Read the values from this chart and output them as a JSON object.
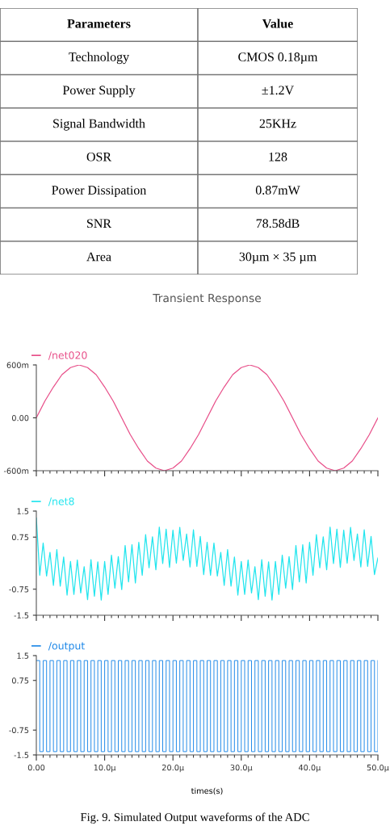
{
  "chart_data": [
    {
      "type": "other",
      "annotations": [
        "Parameters",
        "Value",
        "Technology",
        "CMOS 0.18µm",
        "Power Supply",
        "±1.2V",
        "Signal Bandwidth",
        "25KHz",
        "OSR",
        "128",
        "Power Dissipation",
        "0.87mW",
        "SNR",
        "78.58dB",
        "Area",
        "30µm × 35 µm"
      ]
    },
    {
      "type": "line",
      "title": "Transient Response",
      "legend": "top left",
      "tick_labels": "y",
      "xlim": [
        0,
        50
      ],
      "xticks": [
        {
          "value": 0,
          "label": null
        },
        {
          "value": 10,
          "label": null
        },
        {
          "value": 20,
          "label": null
        },
        {
          "value": 30,
          "label": null
        },
        {
          "value": 40,
          "label": null
        },
        {
          "value": 50,
          "label": null
        }
      ],
      "ylim": [
        -600,
        600
      ],
      "yticks": [
        {
          "value": 600,
          "label": "600m"
        },
        {
          "value": 0,
          "label": "0.00"
        },
        {
          "value": -600,
          "label": "-600m"
        }
      ],
      "x": [
        0,
        1.25,
        2.5,
        3.75,
        5,
        6.25,
        7.5,
        8.75,
        10,
        11.25,
        12.5,
        13.75,
        15,
        16.25,
        17.5,
        18.75,
        20,
        21.25,
        22.5,
        23.75,
        25,
        26.25,
        27.5,
        28.75,
        30,
        31.25,
        32.5,
        33.75,
        35,
        36.25,
        37.5,
        38.75,
        40,
        41.25,
        42.5,
        43.75,
        45,
        46.25,
        47.5,
        48.75,
        50
      ],
      "series": [
        {
          "name": "/net020",
          "color": "#e8508a",
          "values": [
            0,
            190,
            350,
            490,
            570,
            600,
            570,
            490,
            350,
            190,
            0,
            -190,
            -350,
            -490,
            -570,
            -600,
            -570,
            -490,
            -350,
            -190,
            0,
            190,
            350,
            490,
            570,
            600,
            570,
            490,
            350,
            190,
            0,
            -190,
            -350,
            -490,
            -570,
            -600,
            -570,
            -490,
            -350,
            -190,
            0
          ]
        }
      ]
    },
    {
      "type": "line",
      "legend": "top left",
      "tick_labels": "y",
      "xlim": [
        0,
        50
      ],
      "xticks": [
        {
          "value": 0,
          "label": null
        },
        {
          "value": 10,
          "label": null
        },
        {
          "value": 20,
          "label": null
        },
        {
          "value": 30,
          "label": null
        },
        {
          "value": 40,
          "label": null
        },
        {
          "value": 50,
          "label": null
        }
      ],
      "ylim": [
        -1.5,
        1.5
      ],
      "yticks": [
        1.5,
        0.75,
        -0.75,
        -1.5
      ],
      "x": [
        0,
        0.5,
        1,
        1.5,
        2,
        2.5,
        3,
        3.5,
        4,
        4.5,
        5,
        5.5,
        6,
        6.5,
        7,
        7.5,
        8,
        8.5,
        9,
        9.5,
        10,
        10.5,
        11,
        11.5,
        12,
        12.5,
        13,
        13.5,
        14,
        14.5,
        15,
        15.5,
        16,
        16.5,
        17,
        17.5,
        18,
        18.5,
        19,
        19.5,
        20,
        20.5,
        21,
        21.5,
        22,
        22.5,
        23,
        23.5,
        24,
        24.5,
        25,
        25.5,
        26,
        26.5,
        27,
        27.5,
        28,
        28.5,
        29,
        29.5,
        30,
        30.5,
        31,
        31.5,
        32,
        32.5,
        33,
        33.5,
        34,
        34.5,
        35,
        35.5,
        36,
        36.5,
        37,
        37.5,
        38,
        38.5,
        39,
        39.5,
        40,
        40.5,
        41,
        41.5,
        42,
        42.5,
        43,
        43.5,
        44,
        44.5,
        45,
        45.5,
        46,
        46.5,
        47,
        47.5,
        48,
        48.5,
        49,
        49.5,
        50
      ],
      "series": [
        {
          "name": "/net8",
          "color": "#22e5ee",
          "values": [
            1.3,
            -0.35,
            0.58,
            -0.37,
            0.31,
            -0.64,
            0.39,
            -0.66,
            0.18,
            -0.92,
            0.05,
            -0.9,
            0.09,
            -0.86,
            -0.1,
            -1.05,
            0.1,
            -0.95,
            0.04,
            -1.06,
            0.05,
            -0.9,
            0.23,
            -0.72,
            0.19,
            -0.76,
            0.51,
            -0.54,
            0.53,
            -0.57,
            0.6,
            -0.35,
            0.82,
            -0.13,
            0.76,
            -0.19,
            1.04,
            -0.01,
            0.98,
            -0.12,
            0.95,
            0,
            1.03,
            0.08,
            0.84,
            -0.11,
            0.96,
            -0.09,
            0.77,
            -0.33,
            0.6,
            -0.35,
            0.58,
            -0.37,
            0.31,
            -0.64,
            0.39,
            -0.66,
            0.18,
            -0.92,
            0.05,
            -0.9,
            0.09,
            -0.86,
            -0.1,
            -1.05,
            0.1,
            -0.95,
            0.04,
            -1.06,
            0.05,
            -0.9,
            0.23,
            -0.72,
            0.19,
            -0.76,
            0.51,
            -0.54,
            0.53,
            -0.57,
            0.6,
            -0.35,
            0.82,
            -0.13,
            0.76,
            -0.19,
            1.04,
            -0.01,
            0.98,
            -0.12,
            0.95,
            0,
            1.03,
            0.08,
            0.84,
            -0.11,
            0.96,
            -0.09,
            0.77,
            -0.33,
            0.15
          ]
        }
      ]
    },
    {
      "type": "step",
      "legend": "top left",
      "xlabel": "times(s)",
      "annotations": [
        "Fig. 9. Simulated Output waveforms of the ADC"
      ],
      "xlim": [
        0,
        50
      ],
      "xticks": [
        {
          "value": 0,
          "label": "0.00"
        },
        {
          "value": 10,
          "label": "10.0µ"
        },
        {
          "value": 20,
          "label": "20.0µ"
        },
        {
          "value": 30,
          "label": "30.0µ"
        },
        {
          "value": 40,
          "label": "40.0µ"
        },
        {
          "value": 50,
          "label": "50.0µ"
        }
      ],
      "ylim": [
        -1.5,
        1.5
      ],
      "yticks": [
        1.5,
        0.75,
        -0.75,
        -1.5
      ],
      "x": [
        0,
        0.5,
        1,
        1.5,
        2,
        2.5,
        3,
        3.5,
        4,
        4.5,
        5,
        5.5,
        6,
        6.5,
        7,
        7.5,
        8,
        8.5,
        9,
        9.5,
        10,
        10.5,
        11,
        11.5,
        12,
        12.5,
        13,
        13.5,
        14,
        14.5,
        15,
        15.5,
        16,
        16.5,
        17,
        17.5,
        18,
        18.5,
        19,
        19.5,
        20,
        20.5,
        21,
        21.5,
        22,
        22.5,
        23,
        23.5,
        24,
        24.5,
        25,
        25.5,
        26,
        26.5,
        27,
        27.5,
        28,
        28.5,
        29,
        29.5,
        30,
        30.5,
        31,
        31.5,
        32,
        32.5,
        33,
        33.5,
        34,
        34.5,
        35,
        35.5,
        36,
        36.5,
        37,
        37.5,
        38,
        38.5,
        39,
        39.5,
        40,
        40.5,
        41,
        41.5,
        42,
        42.5,
        43,
        43.5,
        44,
        44.5,
        45,
        45.5,
        46,
        46.5,
        47,
        47.5,
        48,
        48.5,
        49,
        49.5,
        50
      ],
      "series": [
        {
          "name": "/output",
          "color": "#1e88e8",
          "values": [
            1.35,
            -1.4,
            1.35,
            -1.4,
            1.35,
            -1.4,
            1.35,
            -1.4,
            1.35,
            -1.4,
            1.35,
            -1.4,
            1.35,
            -1.4,
            1.35,
            -1.4,
            1.35,
            -1.4,
            1.35,
            -1.4,
            1.35,
            -1.4,
            1.35,
            -1.4,
            1.35,
            -1.4,
            1.35,
            -1.4,
            1.35,
            -1.4,
            1.35,
            -1.4,
            1.35,
            -1.4,
            1.35,
            -1.4,
            1.35,
            -1.4,
            1.35,
            -1.4,
            1.35,
            -1.4,
            1.35,
            -1.4,
            1.35,
            -1.4,
            1.35,
            -1.4,
            1.35,
            -1.4,
            1.35,
            -1.4,
            1.35,
            -1.4,
            1.35,
            -1.4,
            1.35,
            -1.4,
            1.35,
            -1.4,
            1.35,
            -1.4,
            1.35,
            -1.4,
            1.35,
            -1.4,
            1.35,
            -1.4,
            1.35,
            -1.4,
            1.35,
            -1.4,
            1.35,
            -1.4,
            1.35,
            -1.4,
            1.35,
            -1.4,
            1.35,
            -1.4,
            1.35,
            -1.4,
            1.35,
            -1.4,
            1.35,
            -1.4,
            1.35,
            -1.4,
            1.35,
            -1.4,
            1.35,
            -1.4,
            1.35,
            -1.4,
            1.35,
            -1.4,
            1.35,
            -1.4,
            1.35,
            -1.4,
            1.35
          ]
        }
      ]
    }
  ]
}
